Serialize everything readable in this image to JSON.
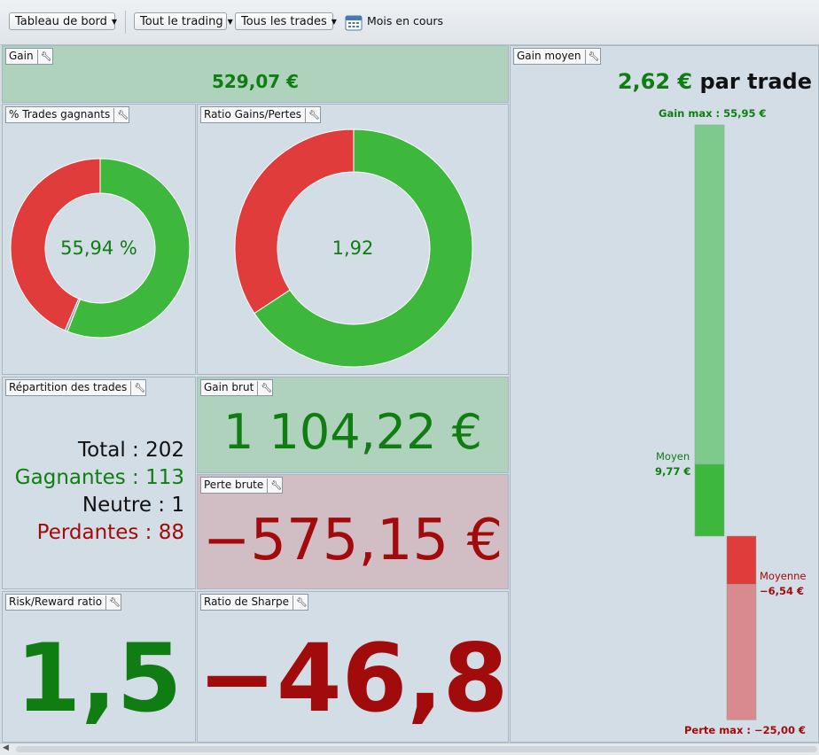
{
  "toolbar": {
    "dashboard_label": "Tableau de bord",
    "trading_filter": "Tout le trading",
    "trades_filter": "Tous les trades",
    "period_label": "Mois en cours"
  },
  "panels": {
    "gain": {
      "title": "Gain",
      "value": "529,07 €"
    },
    "gain_moyen": {
      "title": "Gain moyen",
      "value": "2,62 €",
      "suffix": "par trade",
      "gain_max_label": "Gain max : 55,95 €",
      "moyen_label": "Moyen",
      "moyen_value": "9,77 €",
      "moyenne_label": "Moyenne",
      "moyenne_value": "−6,54 €",
      "perte_max_label": "Perte max : −25,00 €",
      "gain_max": 55.95,
      "avg_gain": 9.77,
      "avg_loss": -6.54,
      "perte_max": -25.0
    },
    "trades_gagnants": {
      "title": "% Trades gagnants",
      "value": "55,94 %",
      "win_pct": 55.94,
      "neutral_pct": 0.5
    },
    "ratio_gains_pertes": {
      "title": "Ratio Gains/Pertes",
      "value": "1,92",
      "gain_share": 0.6576
    },
    "repartition": {
      "title": "Répartition des trades",
      "total_label": "Total",
      "total_value": "202",
      "gagnantes_label": "Gagnantes",
      "gagnantes_value": "113",
      "neutre_label": "Neutre",
      "neutre_value": "1",
      "perdantes_label": "Perdantes",
      "perdantes_value": "88"
    },
    "gain_brut": {
      "title": "Gain brut",
      "value": "1 104,22 €"
    },
    "perte_brute": {
      "title": "Perte brute",
      "value": "−575,15 €"
    },
    "risk_reward": {
      "title": "Risk/Reward ratio",
      "value": "1,5"
    },
    "sharpe": {
      "title": "Ratio de Sharpe",
      "value": "−46,8"
    }
  },
  "colors": {
    "green_text": "#0f7d12",
    "red_text": "#a20b0b",
    "donut_green": "#3db83d",
    "donut_red": "#e03c3c",
    "bar_green_light": "#7ec98c",
    "bar_green": "#3db83d",
    "bar_red": "#e03c3c",
    "bar_red_light": "#d88a8f"
  }
}
